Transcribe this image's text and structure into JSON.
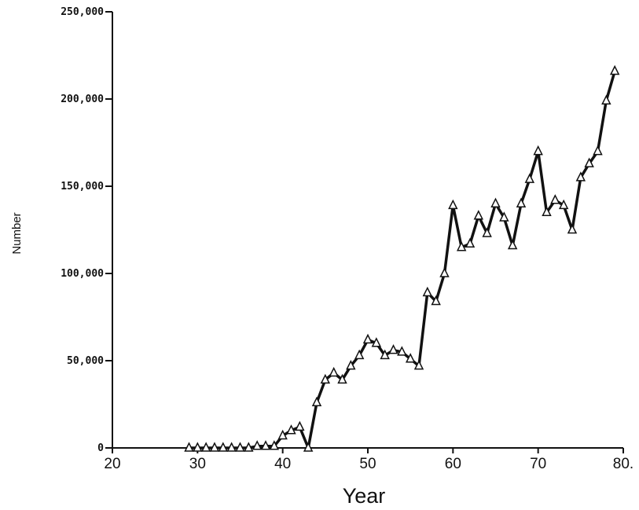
{
  "chart_data": {
    "type": "line",
    "title": "",
    "xlabel": "Year",
    "ylabel": "Number",
    "xlim": [
      20,
      80
    ],
    "ylim": [
      0,
      250000
    ],
    "x_ticks": [
      20,
      30,
      40,
      50,
      60,
      70,
      80
    ],
    "x_tick_labels": [
      "20",
      "30",
      "40",
      "50",
      "60",
      "70",
      "80."
    ],
    "y_ticks": [
      0,
      50000,
      100000,
      150000,
      200000,
      250000
    ],
    "y_tick_labels": [
      "0",
      "50,000",
      "100,000",
      "150,000",
      "200,000",
      "250,000"
    ],
    "grid": false,
    "legend": "none",
    "series": [
      {
        "marker": "triangle",
        "color": "#111111",
        "x": [
          29,
          30,
          31,
          32,
          33,
          34,
          35,
          36,
          37,
          38,
          39,
          40,
          41,
          42,
          43,
          44,
          45,
          46,
          47,
          48,
          49,
          50,
          51,
          52,
          53,
          54,
          55,
          56,
          57,
          58,
          59,
          60,
          61,
          62,
          63,
          64,
          65,
          66,
          67,
          68,
          69,
          70,
          71,
          72,
          73,
          74,
          75,
          76,
          77,
          78,
          79
        ],
        "y": [
          0,
          0,
          0,
          0,
          0,
          0,
          0,
          0,
          1000,
          1000,
          1000,
          7000,
          10000,
          12000,
          0,
          26000,
          39000,
          43000,
          39000,
          47000,
          53000,
          62000,
          60000,
          53000,
          56000,
          55000,
          51000,
          47000,
          89000,
          84000,
          100000,
          139000,
          115000,
          117000,
          133000,
          123000,
          140000,
          132000,
          116000,
          140000,
          154000,
          170000,
          135000,
          142000,
          139000,
          125000,
          155000,
          163000,
          170000,
          199000,
          216000
        ]
      }
    ]
  }
}
